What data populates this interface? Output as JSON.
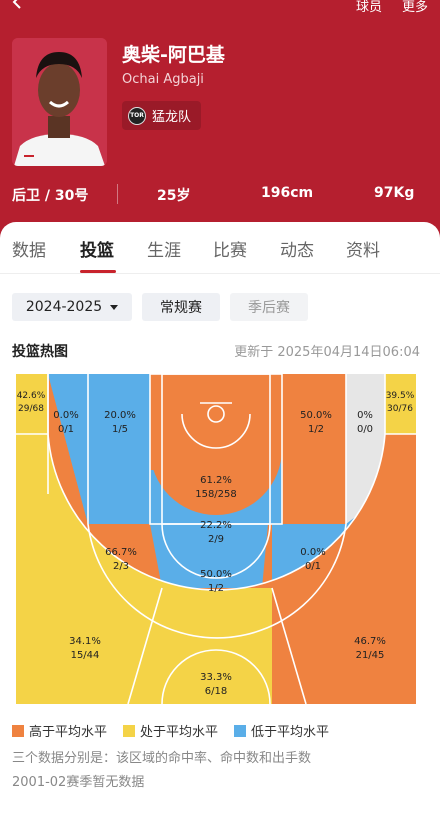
{
  "top_nav": {
    "roster": "球员",
    "more": "更多"
  },
  "player": {
    "name_cn": "奥柴-阿巴基",
    "name_en": "Ochai Agbaji",
    "team": "猛龙队",
    "team_logo": "TOR",
    "position_number": "后卫 / 30号",
    "age": "25岁",
    "height": "196cm",
    "weight": "97Kg"
  },
  "tabs": [
    "数据",
    "投篮",
    "生涯",
    "比赛",
    "动态",
    "资料"
  ],
  "active_tab": "投篮",
  "filters": {
    "season": "2024-2025",
    "regular": "常规赛",
    "playoffs": "季后赛"
  },
  "heatmap": {
    "title": "投篮热图",
    "updated": "更新于 2025年04月14日06:04",
    "zones": {
      "left_corner3": {
        "pct": "42.6%",
        "made": "29/68"
      },
      "right_corner3": {
        "pct": "39.5%",
        "made": "30/76"
      },
      "left_baseline_mid": {
        "pct": "0.0%",
        "made": "0/1"
      },
      "left_short_mid": {
        "pct": "20.0%",
        "made": "1/5"
      },
      "paint": {
        "pct": "61.2%",
        "made": "158/258"
      },
      "right_short_mid": {
        "pct": "50.0%",
        "made": "1/2"
      },
      "right_baseline_mid": {
        "pct": "0%",
        "made": "0/0"
      },
      "ft_area": {
        "pct": "22.2%",
        "made": "2/9"
      },
      "left_wing_mid": {
        "pct": "66.7%",
        "made": "2/3"
      },
      "top_mid": {
        "pct": "50.0%",
        "made": "1/2"
      },
      "right_wing_mid": {
        "pct": "0.0%",
        "made": "0/1"
      },
      "left_wing3": {
        "pct": "34.1%",
        "made": "15/44"
      },
      "top3": {
        "pct": "33.3%",
        "made": "6/18"
      },
      "right_wing3": {
        "pct": "46.7%",
        "made": "21/45"
      }
    }
  },
  "colors": {
    "above": "#ef8240",
    "avg": "#f4d347",
    "below": "#5aaee8",
    "none": "#e6e6e6",
    "brand": "#b51f2f"
  },
  "legend": {
    "above": "高于平均水平",
    "avg": "处于平均水平",
    "below": "低于平均水平"
  },
  "notes": {
    "explain": "三个数据分别是：该区域的命中率、命中数和出手数",
    "no_data": "2001-02赛季暂无数据"
  }
}
